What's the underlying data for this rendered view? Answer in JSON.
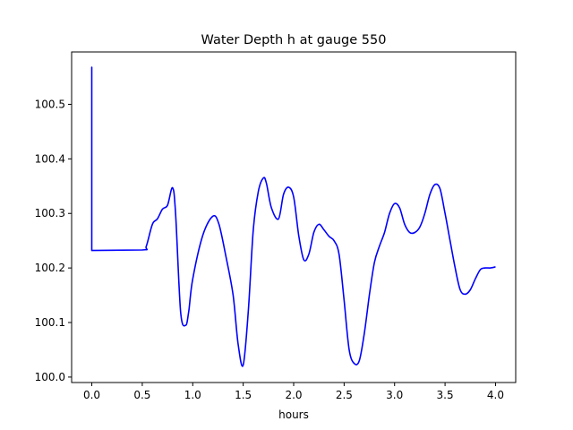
{
  "chart_data": {
    "type": "line",
    "title": "Water Depth h at gauge 550",
    "xlabel": "hours",
    "ylabel": "",
    "xlim": [
      -0.2,
      4.2
    ],
    "ylim": [
      99.99,
      100.596
    ],
    "xticks": [
      0.0,
      0.5,
      1.0,
      1.5,
      2.0,
      2.5,
      3.0,
      3.5,
      4.0
    ],
    "xtick_labels": [
      "0.0",
      "0.5",
      "1.0",
      "1.5",
      "2.0",
      "2.5",
      "3.0",
      "3.5",
      "4.0"
    ],
    "yticks": [
      100.0,
      100.1,
      100.2,
      100.3,
      100.4,
      100.5
    ],
    "ytick_labels": [
      "100.0",
      "100.1",
      "100.2",
      "100.3",
      "100.4",
      "100.5"
    ],
    "grid": false,
    "colors": {
      "line": "#0000ff",
      "axes": "#000000"
    },
    "series": [
      {
        "x": [
          0.0,
          0.0,
          0.0,
          0.5,
          0.54,
          0.6,
          0.65,
          0.7,
          0.75,
          0.8,
          0.83,
          0.88,
          0.93,
          0.96,
          1.0,
          1.1,
          1.2,
          1.26,
          1.33,
          1.4,
          1.45,
          1.5,
          1.55,
          1.6,
          1.65,
          1.7,
          1.73,
          1.78,
          1.85,
          1.9,
          1.95,
          2.0,
          2.05,
          2.1,
          2.15,
          2.2,
          2.25,
          2.3,
          2.35,
          2.4,
          2.45,
          2.5,
          2.55,
          2.6,
          2.65,
          2.7,
          2.75,
          2.8,
          2.85,
          2.9,
          2.95,
          3.0,
          3.05,
          3.1,
          3.15,
          3.2,
          3.25,
          3.3,
          3.35,
          3.4,
          3.45,
          3.5,
          3.55,
          3.6,
          3.65,
          3.7,
          3.75,
          3.8,
          3.85,
          3.9,
          3.95,
          4.0
        ],
        "y": [
          100.232,
          100.568,
          100.232,
          100.233,
          100.24,
          100.28,
          100.29,
          100.308,
          100.315,
          100.347,
          100.3,
          100.12,
          100.095,
          100.12,
          100.18,
          100.26,
          100.295,
          100.28,
          100.22,
          100.15,
          100.06,
          100.022,
          100.12,
          100.27,
          100.34,
          100.365,
          100.355,
          100.31,
          100.29,
          100.335,
          100.348,
          100.33,
          100.26,
          100.215,
          100.225,
          100.265,
          100.28,
          100.27,
          100.258,
          100.25,
          100.225,
          100.14,
          100.05,
          100.025,
          100.03,
          100.08,
          100.15,
          100.21,
          100.24,
          100.265,
          100.3,
          100.318,
          100.31,
          100.28,
          100.265,
          100.265,
          100.275,
          100.3,
          100.335,
          100.353,
          100.345,
          100.3,
          100.25,
          100.2,
          100.16,
          100.152,
          100.16,
          100.18,
          100.197,
          100.2,
          100.2,
          100.202
        ]
      }
    ]
  }
}
